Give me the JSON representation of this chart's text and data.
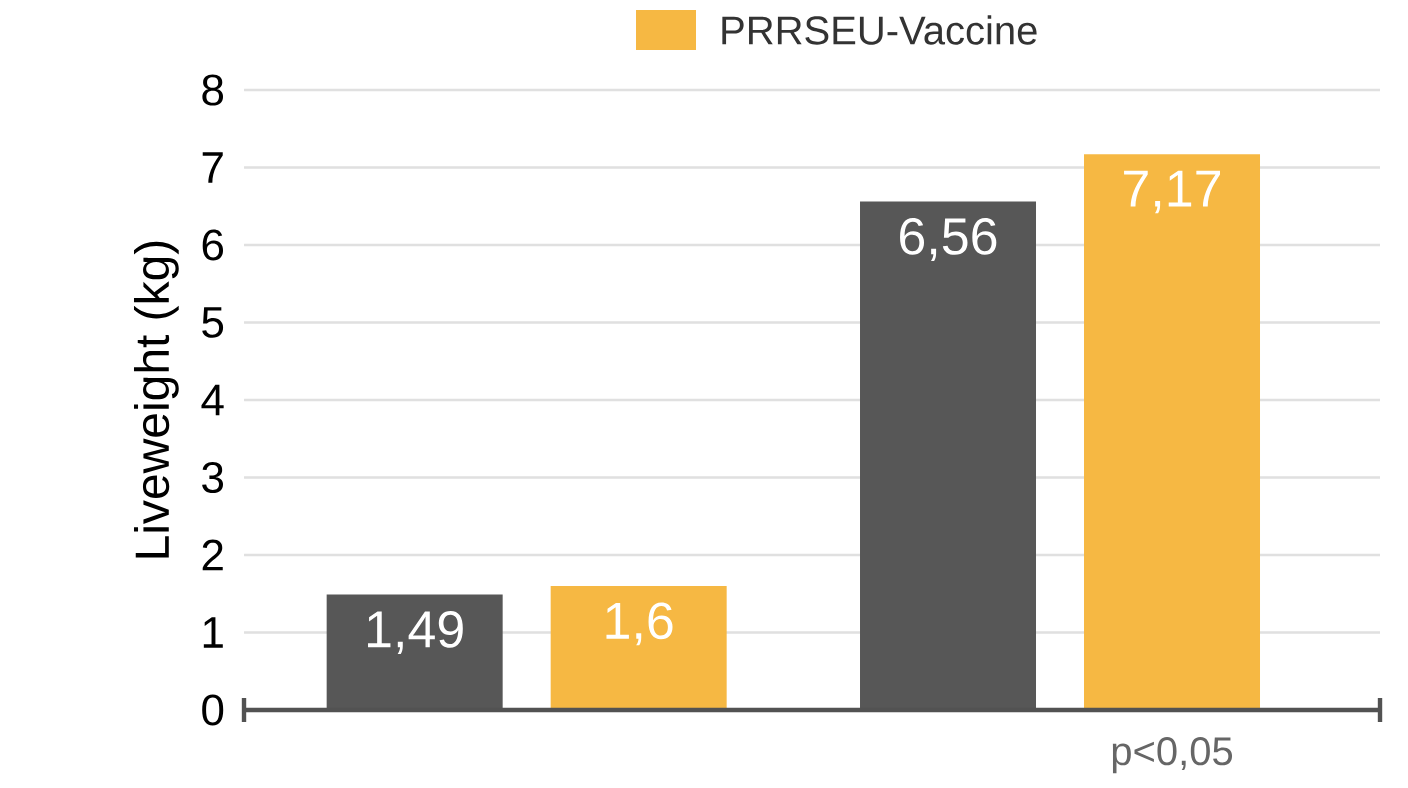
{
  "chart_data": {
    "type": "bar",
    "ylabel": "Liveweight (kg)",
    "categories": [
      null,
      null
    ],
    "series": [
      {
        "color": "#575757",
        "values": [
          1.49,
          6.56
        ],
        "value_labels": [
          "1,49",
          "6,56"
        ]
      },
      {
        "name": "PRRSEU-Vaccine",
        "color": "#f6b843",
        "values": [
          1.6,
          7.17
        ],
        "value_labels": [
          "1,6",
          "7,17"
        ]
      }
    ],
    "ylim": [
      0,
      8
    ],
    "yticks": [
      0,
      1,
      2,
      3,
      4,
      5,
      6,
      7,
      8
    ],
    "grid": "y",
    "legend": "top",
    "annotations": [
      "p<0,05"
    ]
  }
}
